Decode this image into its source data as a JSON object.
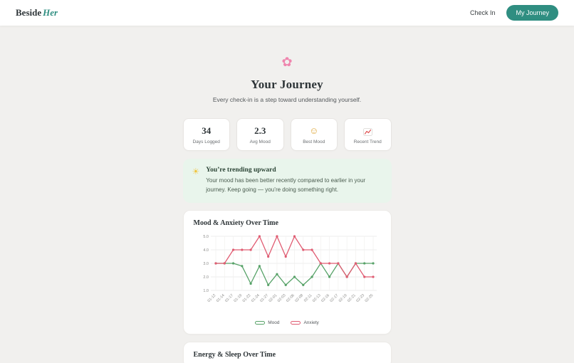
{
  "header": {
    "brand": {
      "name": "Beside",
      "accent": "Her"
    },
    "nav": {
      "check_in_label": "Check In",
      "my_journey_label": "My Journey"
    },
    "accent_color": "#2f8e81"
  },
  "hero": {
    "icon": "flower-icon",
    "title": "Your Journey",
    "subtitle": "Every check-in is a step toward understanding yourself."
  },
  "stats": [
    {
      "value": "34",
      "label": "Days Logged",
      "icon": null
    },
    {
      "value": "2.3",
      "label": "Avg Mood",
      "icon": null
    },
    {
      "value": "",
      "label": "Best Mood",
      "icon": "smiley-face-icon"
    },
    {
      "value": "",
      "label": "Recent Trend",
      "icon": "trend-up-icon"
    }
  ],
  "insight": {
    "icon": "sun-icon",
    "title": "You’re trending upward",
    "body": "Your mood has been better recently compared to earlier in your journey. Keep going — you’re doing something right."
  },
  "chart_data": [
    {
      "type": "line",
      "title": "Mood & Anxiety Over Time",
      "x": [
        "01-12",
        "01-14",
        "01-17",
        "01-19",
        "01-22",
        "01-24",
        "01-27",
        "02-01",
        "02-03",
        "02-06",
        "02-08",
        "02-11",
        "02-13",
        "02-16",
        "02-17",
        "02-19",
        "02-21",
        "02-23",
        "02-25"
      ],
      "series": [
        {
          "name": "Mood",
          "color": "#57a268",
          "values": [
            3.0,
            3.0,
            3.0,
            2.8,
            1.5,
            2.8,
            1.4,
            2.2,
            1.4,
            2.0,
            1.4,
            2.0,
            3.0,
            2.0,
            3.0,
            2.0,
            3.0,
            3.0,
            3.0
          ]
        },
        {
          "name": "Anxiety",
          "color": "#e05c72",
          "values": [
            3.0,
            3.0,
            4.0,
            4.0,
            4.0,
            5.0,
            3.5,
            5.0,
            3.5,
            5.0,
            4.0,
            4.0,
            3.0,
            3.0,
            3.0,
            2.0,
            3.0,
            2.0,
            2.0
          ]
        }
      ],
      "ylim": [
        1.0,
        5.0
      ],
      "yticks": [
        "1.0",
        "2.0",
        "3.0",
        "4.0",
        "5.0"
      ],
      "grid": true,
      "legend_position": "bottom"
    },
    {
      "type": "line",
      "title": "Energy & Sleep Over Time"
    }
  ]
}
